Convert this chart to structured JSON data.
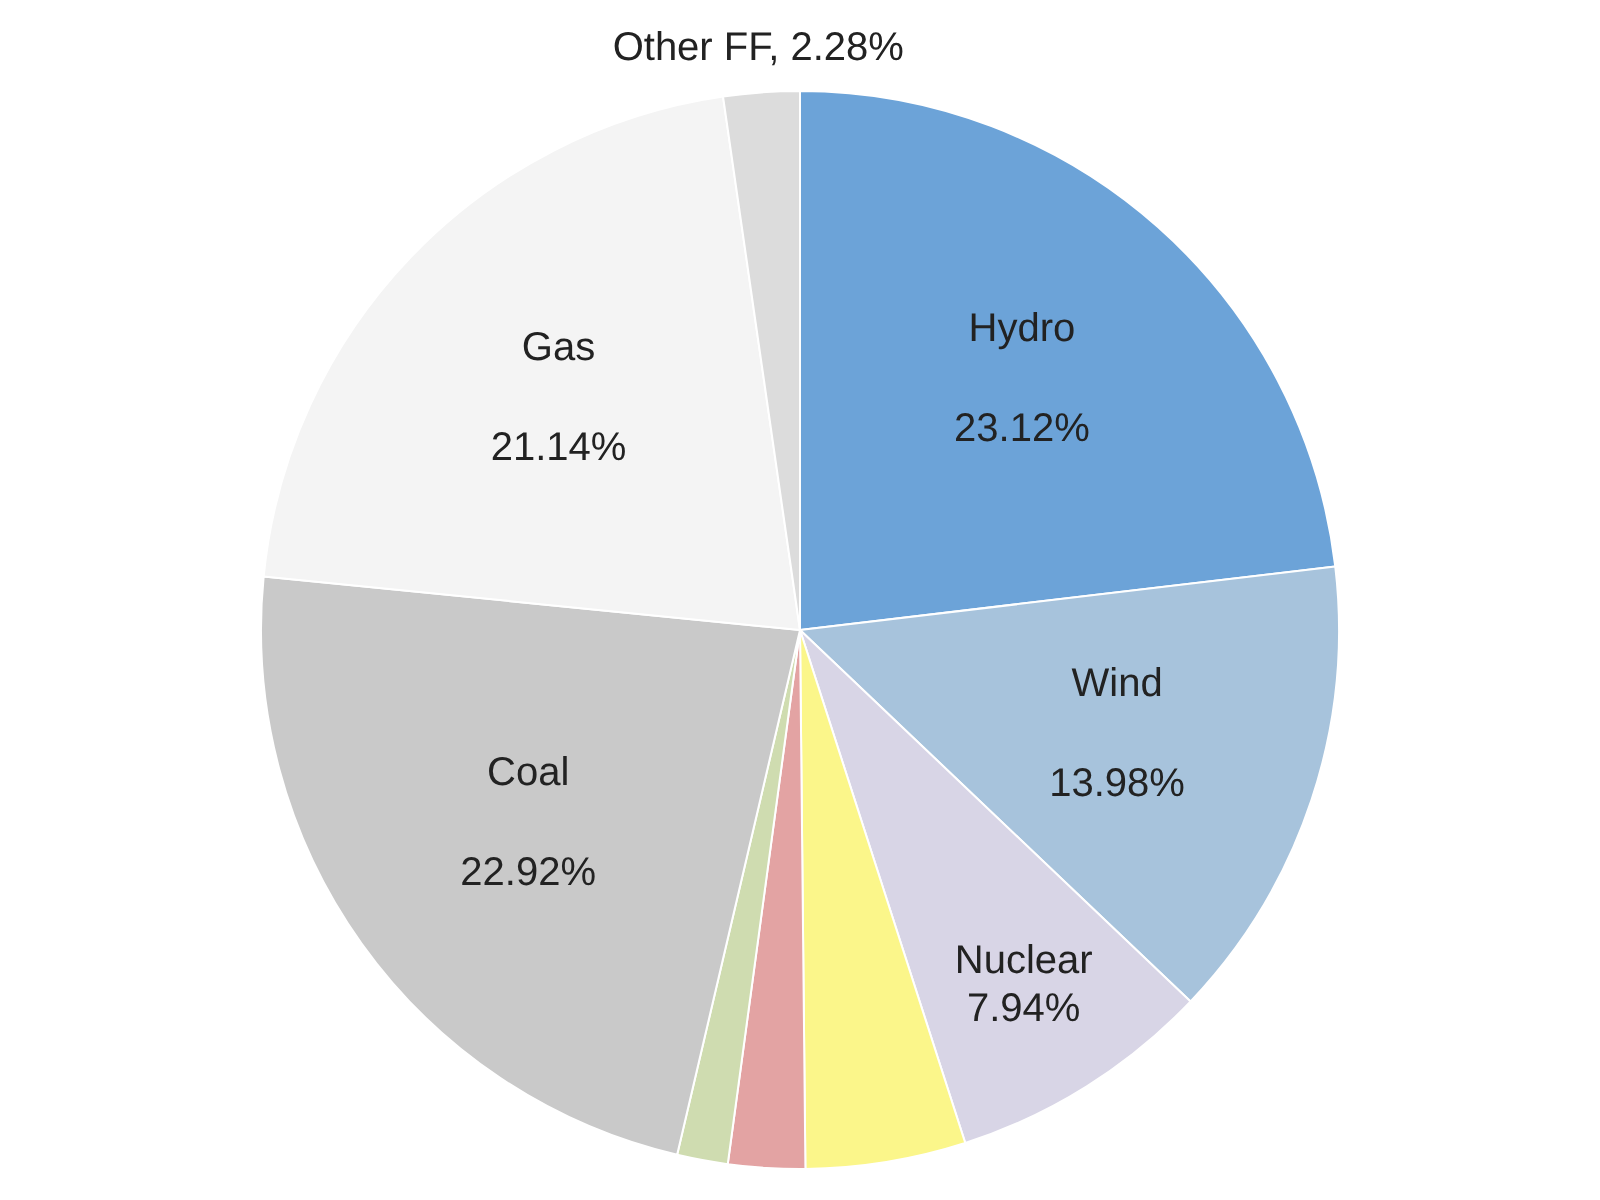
{
  "chart_data": {
    "type": "pie",
    "categories": [
      "Hydro",
      "Wind",
      "Nuclear",
      null,
      null,
      null,
      "Coal",
      "Gas",
      "Other FF"
    ],
    "values": [
      23.12,
      13.98,
      7.94,
      4.8,
      2.3,
      1.52,
      22.92,
      21.14,
      2.28
    ],
    "colors": [
      "#6ca3d8",
      "#a7c3dc",
      "#d8d5e6",
      "#fbf68a",
      "#e3a3a3",
      "#cfdcb0",
      "#c9c9c9",
      "#f4f4f4",
      "#dcdcdc"
    ],
    "value_labels": [
      "23.12%",
      "13.98%",
      "7.94%",
      null,
      null,
      null,
      "22.92%",
      "21.14%",
      "2.28%"
    ],
    "legend": false
  }
}
